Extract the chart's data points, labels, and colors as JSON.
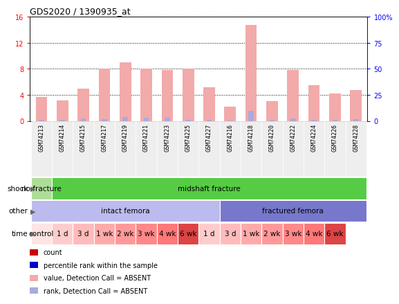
{
  "title": "GDS2020 / 1390935_at",
  "samples": [
    "GSM74213",
    "GSM74214",
    "GSM74215",
    "GSM74217",
    "GSM74219",
    "GSM74221",
    "GSM74223",
    "GSM74225",
    "GSM74227",
    "GSM74216",
    "GSM74218",
    "GSM74220",
    "GSM74222",
    "GSM74224",
    "GSM74226",
    "GSM74228"
  ],
  "bar_values": [
    3.7,
    3.2,
    5.0,
    8.0,
    9.0,
    8.1,
    7.8,
    8.0,
    5.2,
    2.2,
    14.8,
    3.0,
    7.8,
    5.5,
    4.2,
    4.8
  ],
  "rank_values": [
    0.18,
    0.15,
    0.38,
    0.22,
    0.55,
    0.45,
    0.45,
    0.2,
    0.12,
    0.1,
    1.5,
    0.15,
    0.42,
    0.2,
    0.14,
    0.22
  ],
  "ylim_left": [
    0,
    16
  ],
  "ylim_right": [
    0,
    100
  ],
  "yticks_left": [
    0,
    4,
    8,
    12,
    16
  ],
  "yticks_right": [
    0,
    25,
    50,
    75,
    100
  ],
  "ytick_labels_right": [
    "0",
    "25",
    "50",
    "75",
    "100%"
  ],
  "bar_color": "#F2AAAA",
  "rank_color": "#AAAADD",
  "shock_seg1_color": "#AEDD99",
  "shock_seg1_label": "no fracture",
  "shock_seg1_cols": [
    0,
    0
  ],
  "shock_seg2_color": "#55CC44",
  "shock_seg2_label": "midshaft fracture",
  "shock_seg2_cols": [
    1,
    15
  ],
  "other_seg1_color": "#BBBBEE",
  "other_seg1_label": "intact femora",
  "other_seg1_cols": [
    0,
    8
  ],
  "other_seg2_color": "#7777CC",
  "other_seg2_label": "fractured femora",
  "other_seg2_cols": [
    9,
    15
  ],
  "time_labels": [
    "control",
    "1 d",
    "3 d",
    "1 wk",
    "2 wk",
    "3 wk",
    "4 wk",
    "6 wk",
    "1 d",
    "3 d",
    "1 wk",
    "2 wk",
    "3 wk",
    "4 wk",
    "6 wk"
  ],
  "time_colors": [
    "#FFE4E4",
    "#FFCCCC",
    "#FFBBBB",
    "#FFAAAA",
    "#FF9999",
    "#FF8888",
    "#FF7777",
    "#DD4444",
    "#FFCCCC",
    "#FFBBBB",
    "#FFAAAA",
    "#FF9999",
    "#FF8888",
    "#FF7777",
    "#DD4444"
  ],
  "row_labels": [
    "shock",
    "other",
    "time"
  ],
  "legend_items": [
    {
      "color": "#CC0000",
      "label": "count"
    },
    {
      "color": "#0000CC",
      "label": "percentile rank within the sample"
    },
    {
      "color": "#F2AAAA",
      "label": "value, Detection Call = ABSENT"
    },
    {
      "color": "#AAAADD",
      "label": "rank, Detection Call = ABSENT"
    }
  ]
}
